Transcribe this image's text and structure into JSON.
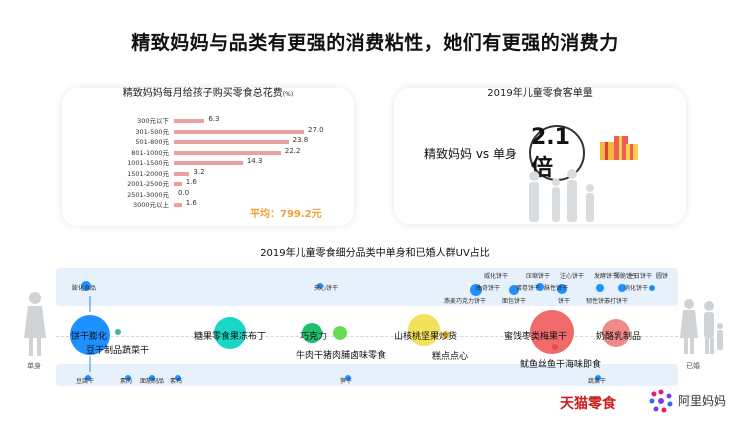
{
  "headline": "精致妈妈与品类有更强的消费粘性，她们有更强的消费力",
  "spend_chart": {
    "title": "精致妈妈每月给孩子购买零食总花费",
    "unit": "(%)",
    "average": "平均：799.2元"
  },
  "basket_panel": {
    "title": "2019年儿童零食客单量",
    "compare": "精致妈妈 vs 单身",
    "multiple": "2.1倍"
  },
  "category_section": {
    "title": "2019年儿童零食细分品类中单身和已婚人群UV占比",
    "left_label": "单身",
    "right_label": "已婚"
  },
  "chart_data": [
    {
      "type": "bar",
      "title": "精致妈妈每月给孩子购买零食总花费",
      "unit": "%",
      "categories": [
        "300元以下",
        "301-500元",
        "501-800元",
        "801-1000元",
        "1001-1500元",
        "1501-2000元",
        "2001-2500元",
        "2501-3000元",
        "3000元以上"
      ],
      "values": [
        6.3,
        27.0,
        23.8,
        22.2,
        14.3,
        3.2,
        1.6,
        0.0,
        1.6
      ],
      "value_labels": [
        "6.3",
        "27.0",
        "23.8",
        "22.2",
        "14.3",
        "3.2",
        "1.6",
        "0.0",
        "1.6"
      ],
      "orientation": "horizontal"
    },
    {
      "type": "scatter",
      "title": "2019年儿童零食细分品类中单身和已婚人群UV占比",
      "points": [
        {
          "label": "饼干膨化",
          "band": "single-married",
          "color": "#1e90ff",
          "highlight": true
        },
        {
          "label": "豆干制品蔬菜干",
          "band": "middle",
          "color": "#1e90ff"
        },
        {
          "label": "糖果零食果冻布丁",
          "band": "middle",
          "color": "#19d7c7"
        },
        {
          "label": "巧克力",
          "band": "middle",
          "color": "#1fc06a"
        },
        {
          "label": "牛肉干猪肉脯卤味零食",
          "band": "middle",
          "color": "#66dd55"
        },
        {
          "label": "山核桃坚果炒货",
          "band": "middle",
          "color": "#f4e15a"
        },
        {
          "label": "糕点点心",
          "band": "middle",
          "color": "#f7c94a"
        },
        {
          "label": "蜜饯枣类梅果干",
          "band": "middle",
          "color": "#f06a6a"
        },
        {
          "label": "鱿鱼丝鱼干海味即食",
          "band": "middle",
          "color": "#f06a6a"
        },
        {
          "label": "奶酪乳制品",
          "band": "middle",
          "color": "#f08a8a"
        }
      ]
    }
  ],
  "top_band_labels": [
    "膨化食品",
    "夹心饼干",
    "威化饼干",
    "曲奇饼干",
    "压缩饼干",
    "蛋卷饼干",
    "发酵饼干",
    "薄脆饼干",
    "注心饼干",
    "消化饼干",
    "酥性饼干",
    "韧性饼干",
    "苏打饼干",
    "燕麦巧克力饼干",
    "面包饼干",
    "饼干",
    "生日饼干",
    "圆饼"
  ],
  "bottom_band_labels": [
    "豆腐干",
    "素肉",
    "面筋制品",
    "素鸡",
    "笋干",
    "蔬菜干"
  ],
  "middle_labels": {
    "m1": "饼干膨化",
    "m2": "豆干制品蔬菜干",
    "m3": "糖果零食果冻布丁",
    "m4": "巧克力",
    "m5": "牛肉干猪肉脯卤味零食",
    "m6": "山核桃坚果炒货",
    "m7": "糕点点心",
    "m8": "蜜饯枣类梅果干",
    "m9": "奶酪乳制品",
    "m10": "鱿鱼丝鱼干海味即食"
  },
  "logos": {
    "tmall": "天猫零食",
    "alimama": "阿里妈妈"
  },
  "colors": {
    "bar": "#e8a1a0",
    "average": "#f0a037",
    "band": "#e6f1fb",
    "tmall_red": "#d01c1c"
  }
}
